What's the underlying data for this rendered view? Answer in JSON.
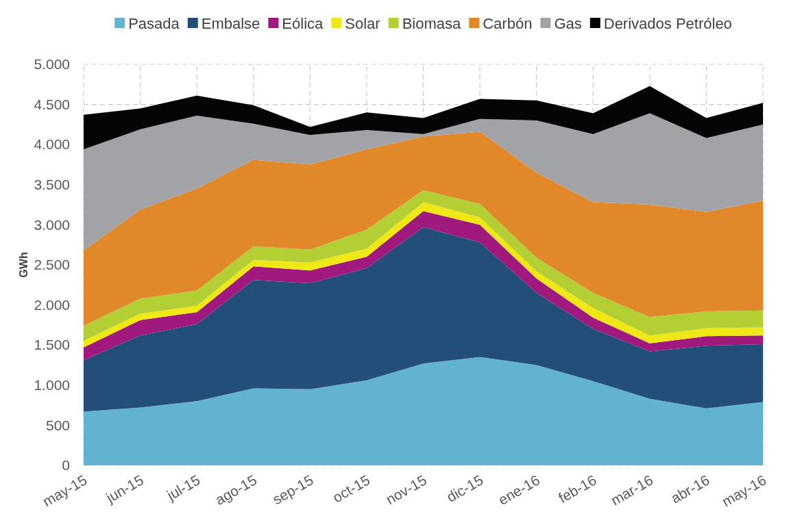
{
  "chart_data": {
    "type": "area",
    "stacked": true,
    "ylabel": "GWh",
    "categories": [
      "may-15",
      "jun-15",
      "jul-15",
      "ago-15",
      "sep-15",
      "oct-15",
      "nov-15",
      "dic-15",
      "ene-16",
      "feb-16",
      "mar-16",
      "abr-16",
      "may-16"
    ],
    "series": [
      {
        "name": "Pasada",
        "color": "#62b3cf",
        "values": [
          670,
          720,
          800,
          960,
          950,
          1060,
          1270,
          1350,
          1250,
          1050,
          830,
          710,
          790
        ]
      },
      {
        "name": "Embalse",
        "color": "#234e7a",
        "values": [
          640,
          900,
          960,
          1350,
          1320,
          1400,
          1700,
          1430,
          900,
          650,
          590,
          780,
          720
        ]
      },
      {
        "name": "Eólica",
        "color": "#a0197d",
        "values": [
          160,
          190,
          150,
          170,
          160,
          140,
          200,
          220,
          180,
          140,
          100,
          120,
          110
        ]
      },
      {
        "name": "Solar",
        "color": "#f0e816",
        "values": [
          80,
          80,
          80,
          80,
          100,
          100,
          110,
          90,
          90,
          120,
          100,
          100,
          100
        ]
      },
      {
        "name": "Biomasa",
        "color": "#b3cf34",
        "values": [
          190,
          190,
          190,
          170,
          160,
          240,
          150,
          170,
          170,
          190,
          230,
          210,
          210
        ]
      },
      {
        "name": "Carbón",
        "color": "#e0882a",
        "values": [
          940,
          1110,
          1270,
          1080,
          1060,
          1000,
          670,
          900,
          1060,
          1130,
          1400,
          1240,
          1370
        ]
      },
      {
        "name": "Gas",
        "color": "#a2a3a6",
        "values": [
          1260,
          1000,
          910,
          450,
          370,
          240,
          30,
          160,
          650,
          850,
          1140,
          920,
          950
        ]
      },
      {
        "name": "Derivados Petróleo",
        "color": "#050505",
        "values": [
          430,
          260,
          250,
          230,
          100,
          220,
          200,
          250,
          250,
          260,
          340,
          250,
          270
        ]
      }
    ],
    "ylim": [
      0,
      5000
    ],
    "yticks": [
      0,
      500,
      {
        "value": 1000,
        "label": "1.000"
      },
      {
        "value": 1500,
        "label": "1.500"
      },
      {
        "value": 2000,
        "label": "2.000"
      },
      {
        "value": 2500,
        "label": "2.500"
      },
      {
        "value": 3000,
        "label": "3.000"
      },
      {
        "value": 3500,
        "label": "3.500"
      },
      {
        "value": 4000,
        "label": "4.000"
      },
      {
        "value": 4500,
        "label": "4.500"
      },
      {
        "value": 5000,
        "label": "5.000"
      }
    ],
    "grid": true,
    "legend": "top"
  }
}
